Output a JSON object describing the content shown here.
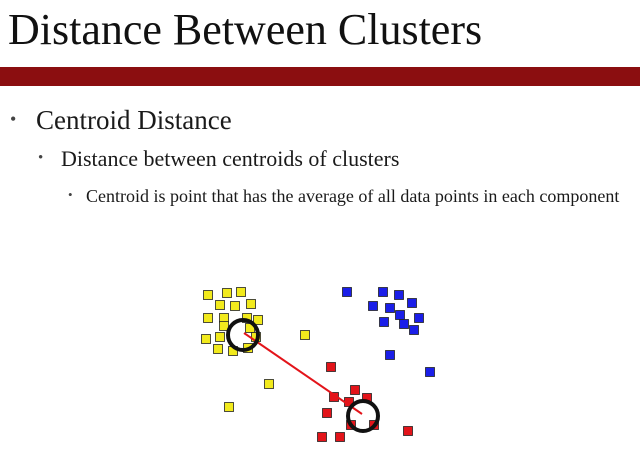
{
  "slide": {
    "title": "Distance Between Clusters",
    "accent_color": "#8b0e10"
  },
  "bullets": {
    "level1": "Centroid Distance",
    "level2": "Distance between centroids of clusters",
    "level3": "Centroid is point that has the average of all data points in each component",
    "bullet_glyph": "•"
  },
  "figure": {
    "colors": {
      "yellow_cluster": "#f2ea1c",
      "blue_cluster": "#1a1ee8",
      "red_cluster": "#e3141a",
      "centroid_ring": "#111111",
      "connector_line": "#e3141a"
    }
  }
}
